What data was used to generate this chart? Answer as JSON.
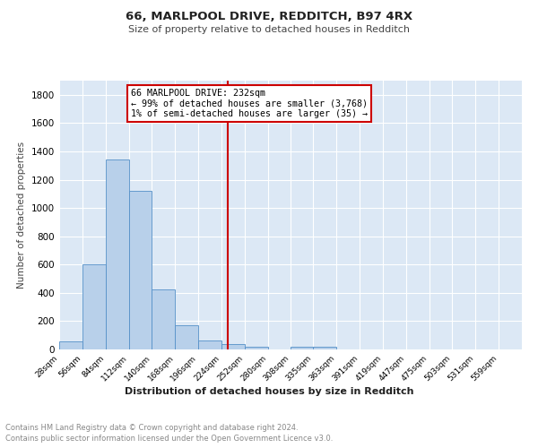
{
  "title1": "66, MARLPOOL DRIVE, REDDITCH, B97 4RX",
  "title2": "Size of property relative to detached houses in Redditch",
  "xlabel": "Distribution of detached houses by size in Redditch",
  "ylabel": "Number of detached properties",
  "footnote1": "Contains HM Land Registry data © Crown copyright and database right 2024.",
  "footnote2": "Contains public sector information licensed under the Open Government Licence v3.0.",
  "annotation_line1": "66 MARLPOOL DRIVE: 232sqm",
  "annotation_line2": "← 99% of detached houses are smaller (3,768)",
  "annotation_line3": "1% of semi-detached houses are larger (35) →",
  "bar_edges": [
    28,
    56,
    84,
    112,
    140,
    168,
    196,
    224,
    252,
    280,
    308,
    335,
    363,
    391,
    419,
    447,
    475,
    503,
    531,
    559,
    587
  ],
  "bar_heights": [
    60,
    600,
    1345,
    1120,
    425,
    170,
    65,
    40,
    20,
    0,
    20,
    20,
    0,
    0,
    0,
    0,
    0,
    0,
    0,
    0
  ],
  "property_value": 232,
  "bar_color": "#b8d0ea",
  "bar_edge_color": "#5590c8",
  "vline_color": "#cc0000",
  "annotation_box_edge": "#cc0000",
  "background_color": "#dce8f5",
  "ylim": [
    0,
    1900
  ],
  "yticks": [
    0,
    200,
    400,
    600,
    800,
    1000,
    1200,
    1400,
    1600,
    1800
  ]
}
